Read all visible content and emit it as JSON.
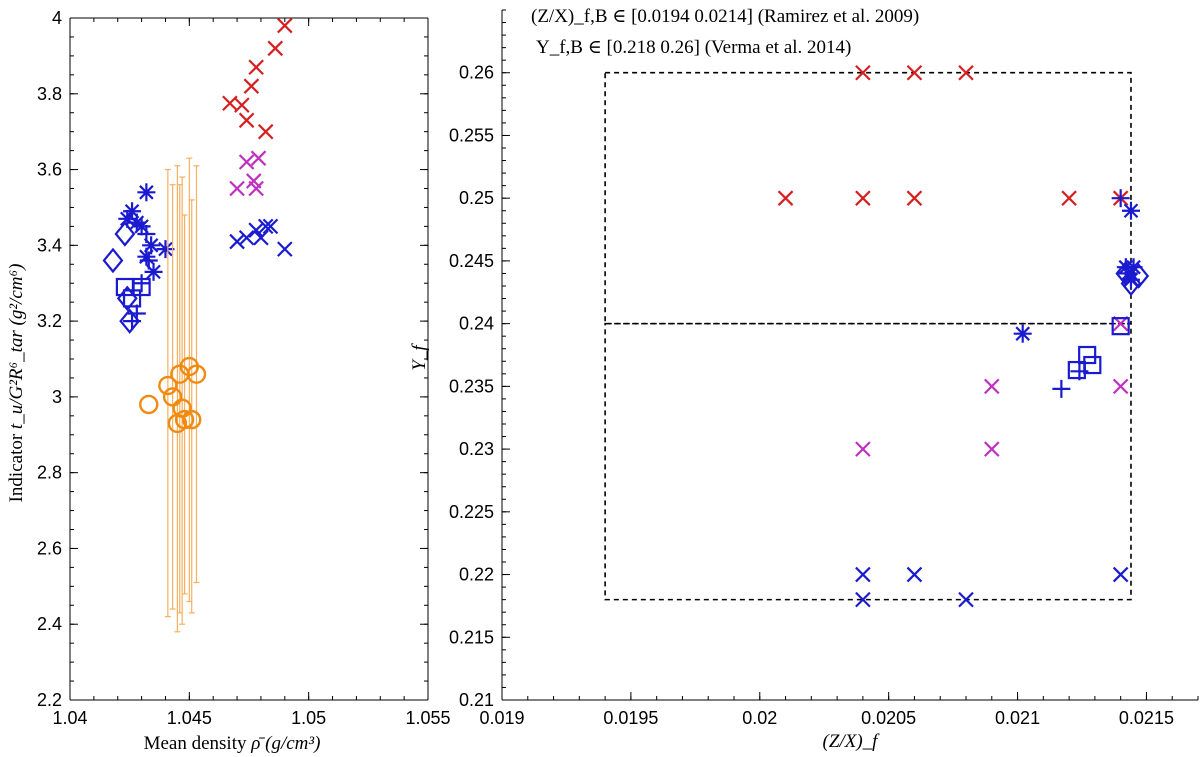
{
  "chart_data": [
    {
      "type": "scatter",
      "panel": "left",
      "xlabel_text": "Mean density",
      "xlabel_math": "ρ̄ (g/cm³)",
      "ylabel_text": "Indicator",
      "ylabel_math": "t_u/G²R⁶_tar  (g²/cm⁶)",
      "xlim": [
        1.04,
        1.055
      ],
      "ylim": [
        2.2,
        4.0
      ],
      "xticks": [
        1.04,
        1.045,
        1.05,
        1.055
      ],
      "xtick_labels": [
        "1.04",
        "1.045",
        "1.05",
        "1.055"
      ],
      "yticks": [
        2.2,
        2.4,
        2.6,
        2.8,
        3.0,
        3.2,
        3.4,
        3.6,
        3.8,
        4.0
      ],
      "ytick_labels": [
        "2.2",
        "2.4",
        "2.6",
        "2.8",
        "3",
        "3.2",
        "3.4",
        "3.6",
        "3.8",
        "4"
      ],
      "series": [
        {
          "name": "red-x",
          "marker": "x",
          "color": "#d62020",
          "points": [
            [
              1.0467,
              3.775
            ],
            [
              1.0472,
              3.77
            ],
            [
              1.0474,
              3.73
            ],
            [
              1.0476,
              3.82
            ],
            [
              1.0478,
              3.87
            ],
            [
              1.0482,
              3.7
            ],
            [
              1.0486,
              3.92
            ],
            [
              1.049,
              3.98
            ]
          ]
        },
        {
          "name": "magenta-x",
          "marker": "x",
          "color": "#c030c0",
          "points": [
            [
              1.047,
              3.55
            ],
            [
              1.0474,
              3.62
            ],
            [
              1.0477,
              3.57
            ],
            [
              1.0478,
              3.55
            ],
            [
              1.0479,
              3.63
            ]
          ]
        },
        {
          "name": "blue-x",
          "marker": "x",
          "color": "#1a1ad0",
          "points": [
            [
              1.047,
              3.41
            ],
            [
              1.0474,
              3.42
            ],
            [
              1.0478,
              3.44
            ],
            [
              1.048,
              3.42
            ],
            [
              1.0482,
              3.45
            ],
            [
              1.0484,
              3.45
            ],
            [
              1.049,
              3.39
            ]
          ]
        },
        {
          "name": "blue-star",
          "marker": "star",
          "color": "#1a1ad0",
          "points": [
            [
              1.0424,
              3.47
            ],
            [
              1.0426,
              3.49
            ],
            [
              1.0428,
              3.46
            ],
            [
              1.043,
              3.45
            ],
            [
              1.0432,
              3.54
            ],
            [
              1.0432,
              3.37
            ],
            [
              1.0434,
              3.4
            ],
            [
              1.0435,
              3.33
            ],
            [
              1.044,
              3.39
            ]
          ]
        },
        {
          "name": "blue-plus",
          "marker": "plus",
          "color": "#1a1ad0",
          "points": [
            [
              1.0426,
              3.2
            ],
            [
              1.0428,
              3.22
            ],
            [
              1.043,
              3.3
            ],
            [
              1.0432,
              3.43
            ],
            [
              1.0433,
              3.36
            ]
          ]
        },
        {
          "name": "blue-diamond",
          "marker": "diamond",
          "color": "#1a1ad0",
          "points": [
            [
              1.0418,
              3.36
            ],
            [
              1.0423,
              3.43
            ],
            [
              1.0424,
              3.26
            ],
            [
              1.0425,
              3.2
            ]
          ]
        },
        {
          "name": "blue-square",
          "marker": "square",
          "color": "#1a1ad0",
          "points": [
            [
              1.0423,
              3.29
            ],
            [
              1.0426,
              3.26
            ],
            [
              1.043,
              3.29
            ]
          ]
        },
        {
          "name": "orange-circle",
          "marker": "circle",
          "color": "#f08a10",
          "errorbars": true,
          "points": [
            [
              1.0433,
              2.98
            ],
            [
              1.0441,
              3.03
            ],
            [
              1.0443,
              3.0
            ],
            [
              1.0445,
              2.93
            ],
            [
              1.0446,
              3.06
            ],
            [
              1.0447,
              2.97
            ],
            [
              1.0448,
              2.94
            ],
            [
              1.045,
              3.08
            ],
            [
              1.0451,
              2.94
            ],
            [
              1.0453,
              3.06
            ]
          ],
          "err_low": [
            null,
            2.42,
            2.44,
            2.38,
            2.43,
            2.4,
            2.48,
            2.46,
            2.43,
            2.51
          ],
          "err_high": [
            null,
            3.6,
            3.56,
            3.61,
            3.56,
            3.58,
            3.48,
            3.63,
            3.52,
            3.61
          ]
        }
      ]
    },
    {
      "type": "scatter",
      "panel": "right",
      "xlabel_math": "(Z/X)_f",
      "ylabel_math": "Y_f",
      "annotations": [
        "(Z/X)_f,B ∈ [0.0194 0.0214] (Ramirez et al. 2009)",
        "Y_f,B ∈ [0.218 0.26] (Verma et al. 2014)"
      ],
      "xlim": [
        0.019,
        0.0217
      ],
      "ylim": [
        0.21,
        0.265
      ],
      "xticks": [
        0.019,
        0.0195,
        0.02,
        0.0205,
        0.021,
        0.0215
      ],
      "xtick_labels": [
        "0.019",
        "0.0195",
        "0.02",
        "0.0205",
        "0.021",
        "0.0215"
      ],
      "yticks": [
        0.21,
        0.215,
        0.22,
        0.225,
        0.23,
        0.235,
        0.24,
        0.245,
        0.25,
        0.255,
        0.26
      ],
      "ytick_labels": [
        "0.21",
        "0.215",
        "0.22",
        "0.225",
        "0.23",
        "0.235",
        "0.24",
        "0.245",
        "0.25",
        "0.255",
        "0.26"
      ],
      "boxes": [
        {
          "x0": 0.0194,
          "x1": 0.02144,
          "y0": 0.24,
          "y1": 0.26
        },
        {
          "x0": 0.0194,
          "x1": 0.02144,
          "y0": 0.218,
          "y1": 0.24
        }
      ],
      "series": [
        {
          "name": "red-x",
          "marker": "x",
          "color": "#d62020",
          "points": [
            [
              0.0204,
              0.26
            ],
            [
              0.0206,
              0.26
            ],
            [
              0.0208,
              0.26
            ],
            [
              0.0201,
              0.25
            ],
            [
              0.0204,
              0.25
            ],
            [
              0.0206,
              0.25
            ],
            [
              0.0212,
              0.25
            ],
            [
              0.0214,
              0.25
            ]
          ]
        },
        {
          "name": "magenta-x",
          "marker": "x",
          "color": "#c030c0",
          "points": [
            [
              0.0214,
              0.24
            ],
            [
              0.0209,
              0.235
            ],
            [
              0.0214,
              0.235
            ],
            [
              0.0204,
              0.23
            ],
            [
              0.0209,
              0.23
            ]
          ]
        },
        {
          "name": "blue-x",
          "marker": "x",
          "color": "#1a1ad0",
          "points": [
            [
              0.0204,
              0.22
            ],
            [
              0.0206,
              0.22
            ],
            [
              0.0214,
              0.22
            ],
            [
              0.0204,
              0.218
            ],
            [
              0.0208,
              0.218
            ]
          ]
        },
        {
          "name": "blue-star",
          "marker": "star",
          "color": "#1a1ad0",
          "points": [
            [
              0.02102,
              0.2392
            ],
            [
              0.02144,
              0.249
            ],
            [
              0.02142,
              0.2445
            ],
            [
              0.02143,
              0.244
            ],
            [
              0.02144,
              0.2435
            ],
            [
              0.02145,
              0.2445
            ]
          ]
        },
        {
          "name": "blue-plus",
          "marker": "plus",
          "color": "#1a1ad0",
          "points": [
            [
              0.02117,
              0.2348
            ],
            [
              0.02124,
              0.2362
            ],
            [
              0.0214,
              0.25
            ],
            [
              0.02142,
              0.244
            ]
          ]
        },
        {
          "name": "blue-diamond",
          "marker": "diamond",
          "color": "#1a1ad0",
          "points": [
            [
              0.02142,
              0.244
            ],
            [
              0.02144,
              0.2432
            ],
            [
              0.02147,
              0.2438
            ]
          ]
        },
        {
          "name": "blue-square",
          "marker": "square",
          "color": "#1a1ad0",
          "points": [
            [
              0.02123,
              0.2363
            ],
            [
              0.02127,
              0.2375
            ],
            [
              0.02129,
              0.2367
            ],
            [
              0.0214,
              0.2398
            ]
          ]
        }
      ]
    }
  ]
}
